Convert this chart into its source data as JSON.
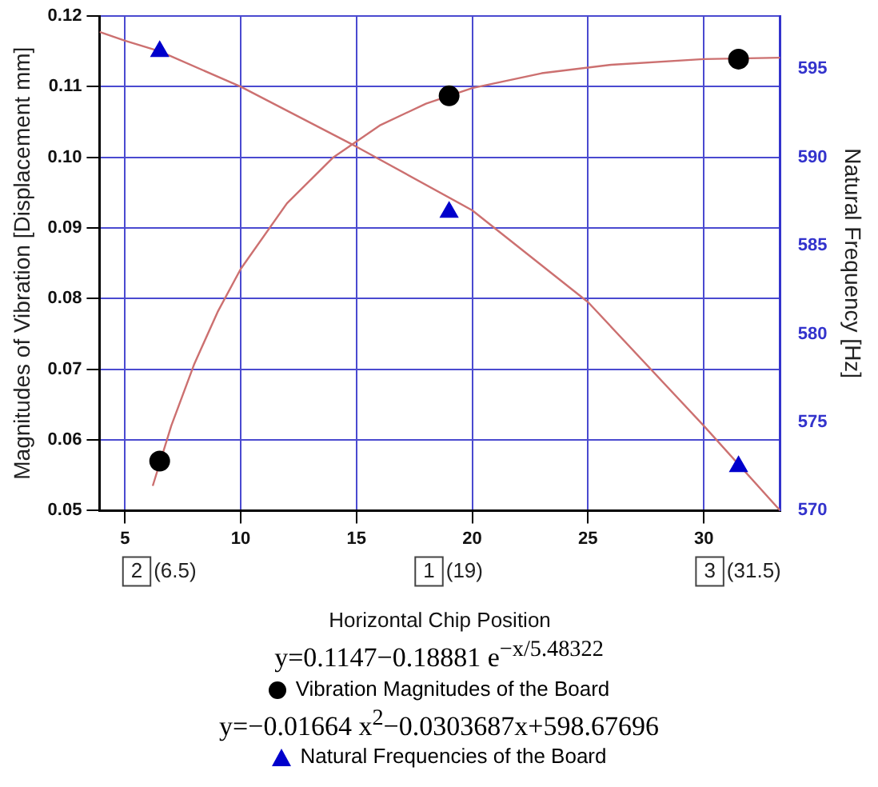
{
  "chart_data": {
    "type": "scatter",
    "xlabel": "Horizontal Chip Position",
    "ylabel": "Magnitudes of Vibration [Displacement mm]",
    "y2label": "Natural Frequency [Hz]",
    "xlim": [
      3.9,
      33.3
    ],
    "xticks": [
      5,
      10,
      15,
      20,
      25,
      30
    ],
    "ylim": [
      0.05,
      0.12
    ],
    "yticks": [
      0.05,
      0.06,
      0.07,
      0.08,
      0.09,
      {
        "value": 0.1,
        "label": "0.10"
      },
      0.11,
      0.12
    ],
    "y2lim": [
      570,
      598
    ],
    "y2ticks": [
      570,
      575,
      580,
      585,
      590,
      595
    ],
    "grid": true,
    "legend": "bottom",
    "series": [
      {
        "type": "scatter",
        "name": "Vibration Magnitudes of the Board",
        "color": "#000000",
        "marker": "circle",
        "x": [
          6.5,
          19,
          31.5
        ],
        "values": [
          0.057,
          0.1087,
          0.1139
        ]
      },
      {
        "type": "line",
        "color": "#cc7070",
        "marker": "none",
        "x": [
          6.2,
          7,
          8,
          9,
          10,
          12,
          14,
          16,
          18,
          20,
          23,
          26,
          30,
          33.3
        ],
        "values": [
          0.0535,
          0.062,
          0.0708,
          0.0781,
          0.0842,
          0.0935,
          0.1,
          0.1045,
          0.1076,
          0.1098,
          0.1119,
          0.1131,
          0.1139,
          0.1141
        ]
      },
      {
        "type": "scatter",
        "name": "Natural Frequencies of the Board",
        "color": "#0000cc",
        "marker": "triangle",
        "axis": "y2",
        "x": [
          6.5,
          19,
          31.5
        ],
        "values": [
          596,
          586.9,
          572.5
        ]
      },
      {
        "type": "line",
        "color": "#cc7070",
        "marker": "none",
        "axis": "y2",
        "x": [
          3.9,
          5,
          6.5,
          10,
          15,
          20,
          25,
          30,
          33.3
        ],
        "values": [
          597.1,
          596.6,
          596,
          594,
          590.6,
          587,
          581.8,
          574.8,
          570
        ]
      }
    ],
    "annotations": [
      "2 (6.5)",
      "1 (19)",
      "3 (31.5)",
      "y=0.1147−0.18881 e$^{−x/5.48322}$",
      "y=−0.01664 x$^{2}$−0.0303687x+598.67696"
    ]
  }
}
